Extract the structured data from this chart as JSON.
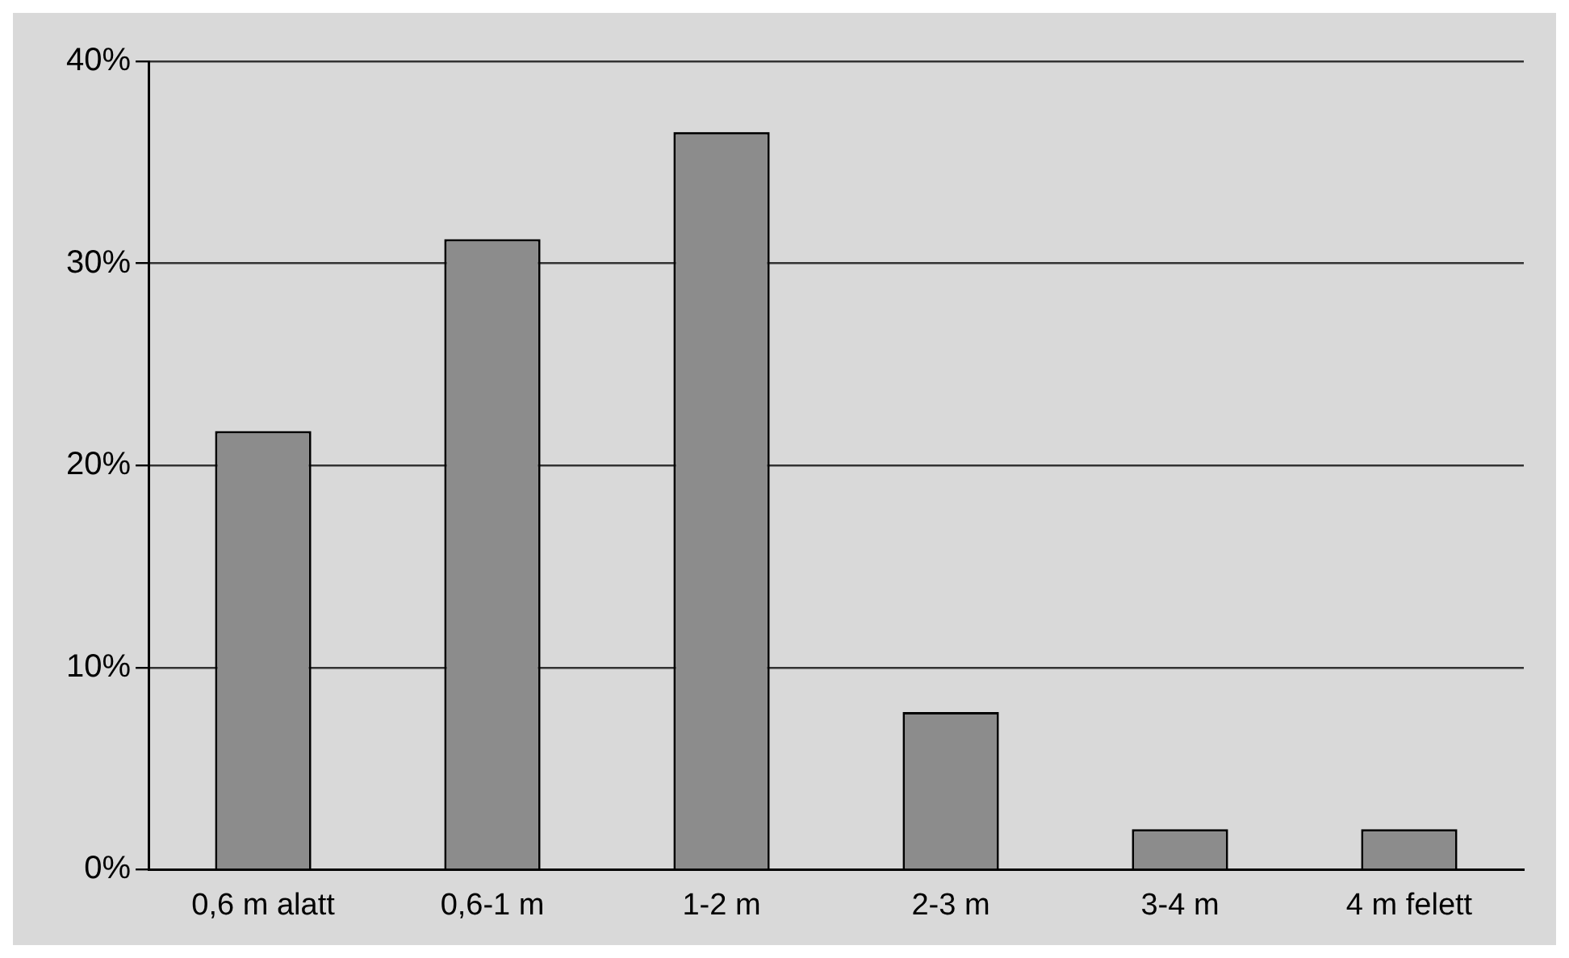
{
  "chart_data": {
    "type": "bar",
    "categories": [
      "0,6 m alatt",
      "0,6-1 m",
      "1-2 m",
      "2-3 m",
      "3-4 m",
      "4 m felett"
    ],
    "values": [
      21.7,
      31.2,
      36.5,
      7.8,
      2.0,
      2.0
    ],
    "color": "#8c8c8c",
    "ylim": [
      0,
      40
    ],
    "yticks": [
      {
        "value": 0,
        "label": "0%"
      },
      {
        "value": 10,
        "label": "10%"
      },
      {
        "value": 20,
        "label": "20%"
      },
      {
        "value": 30,
        "label": "30%"
      },
      {
        "value": 40,
        "label": "40%"
      }
    ],
    "grid": "y",
    "legend": false
  }
}
